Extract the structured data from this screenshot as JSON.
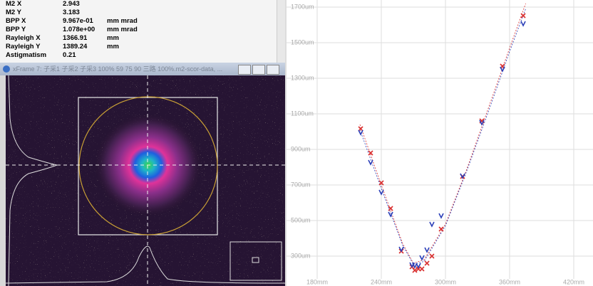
{
  "panel": {
    "rows": [
      {
        "name": "M2 X",
        "value": "2.943"
      },
      {
        "name": "M2 Y",
        "value": "3.183"
      },
      {
        "name": "BPP X",
        "value": "9.967e-01",
        "unit": "mm mrad"
      },
      {
        "name": "BPP Y",
        "value": "1.078e+00",
        "unit": "mm mrad"
      },
      {
        "name": "Rayleigh X",
        "value": "1366.91",
        "unit": "mm"
      },
      {
        "name": "Rayleigh Y",
        "value": "1389.24",
        "unit": "mm"
      },
      {
        "name": "Astigmatism",
        "value": "0.21"
      }
    ],
    "window_title": "xFrame 7: 子采1 子采2 子采3 100%   59 75 90 三路 100%.m2-scor-data, ..."
  },
  "chart_data": {
    "type": "scatter",
    "x": [
      220.7,
      230,
      240,
      248.7,
      258.7,
      268.7,
      271.3,
      274.7,
      278,
      282.7,
      287.3,
      296,
      316,
      334,
      353.3,
      372.7
    ],
    "series": [
      {
        "color": "#d93030",
        "marker": "x",
        "values": [
          1016,
          880,
          712,
          568,
          328,
          240,
          220,
          228,
          228,
          260,
          300,
          452,
          748,
          1060,
          1368,
          1652
        ]
      },
      {
        "color": "#2b3fb8",
        "marker": "v",
        "values": [
          996,
          828,
          660,
          536,
          340,
          252,
          248,
          248,
          292,
          336,
          480,
          528,
          752,
          1052,
          1352,
          1608
        ]
      }
    ],
    "fit_x": [
      220,
      240,
      260,
      270,
      280,
      300,
      320,
      340,
      360,
      375
    ],
    "fits": [
      {
        "color": "#d93030",
        "values": [
          1040,
          700,
          370,
          260,
          280,
          480,
          790,
          1130,
          1470,
          1720
        ]
      },
      {
        "color": "#2b3fb8",
        "values": [
          1010,
          680,
          360,
          255,
          270,
          470,
          780,
          1110,
          1450,
          1690
        ]
      }
    ],
    "xlim": [
      150,
      438
    ],
    "ylim": [
      172,
      1740
    ],
    "xticks": [
      {
        "value": 180,
        "label": "180mm"
      },
      {
        "value": 240,
        "label": "240mm"
      },
      {
        "value": 300,
        "label": "300mm"
      },
      {
        "value": 360,
        "label": "360mm"
      },
      {
        "value": 420,
        "label": "420mm"
      }
    ],
    "yticks": [
      {
        "value": 300,
        "label": "300um"
      },
      {
        "value": 500,
        "label": "500um"
      },
      {
        "value": 700,
        "label": "700um"
      },
      {
        "value": 900,
        "label": "900um"
      },
      {
        "value": 1100,
        "label": "1100um"
      },
      {
        "value": 1300,
        "label": "1300um"
      },
      {
        "value": 1500,
        "label": "1500um"
      },
      {
        "value": 1700,
        "label": "1700um"
      }
    ],
    "grid": true
  }
}
